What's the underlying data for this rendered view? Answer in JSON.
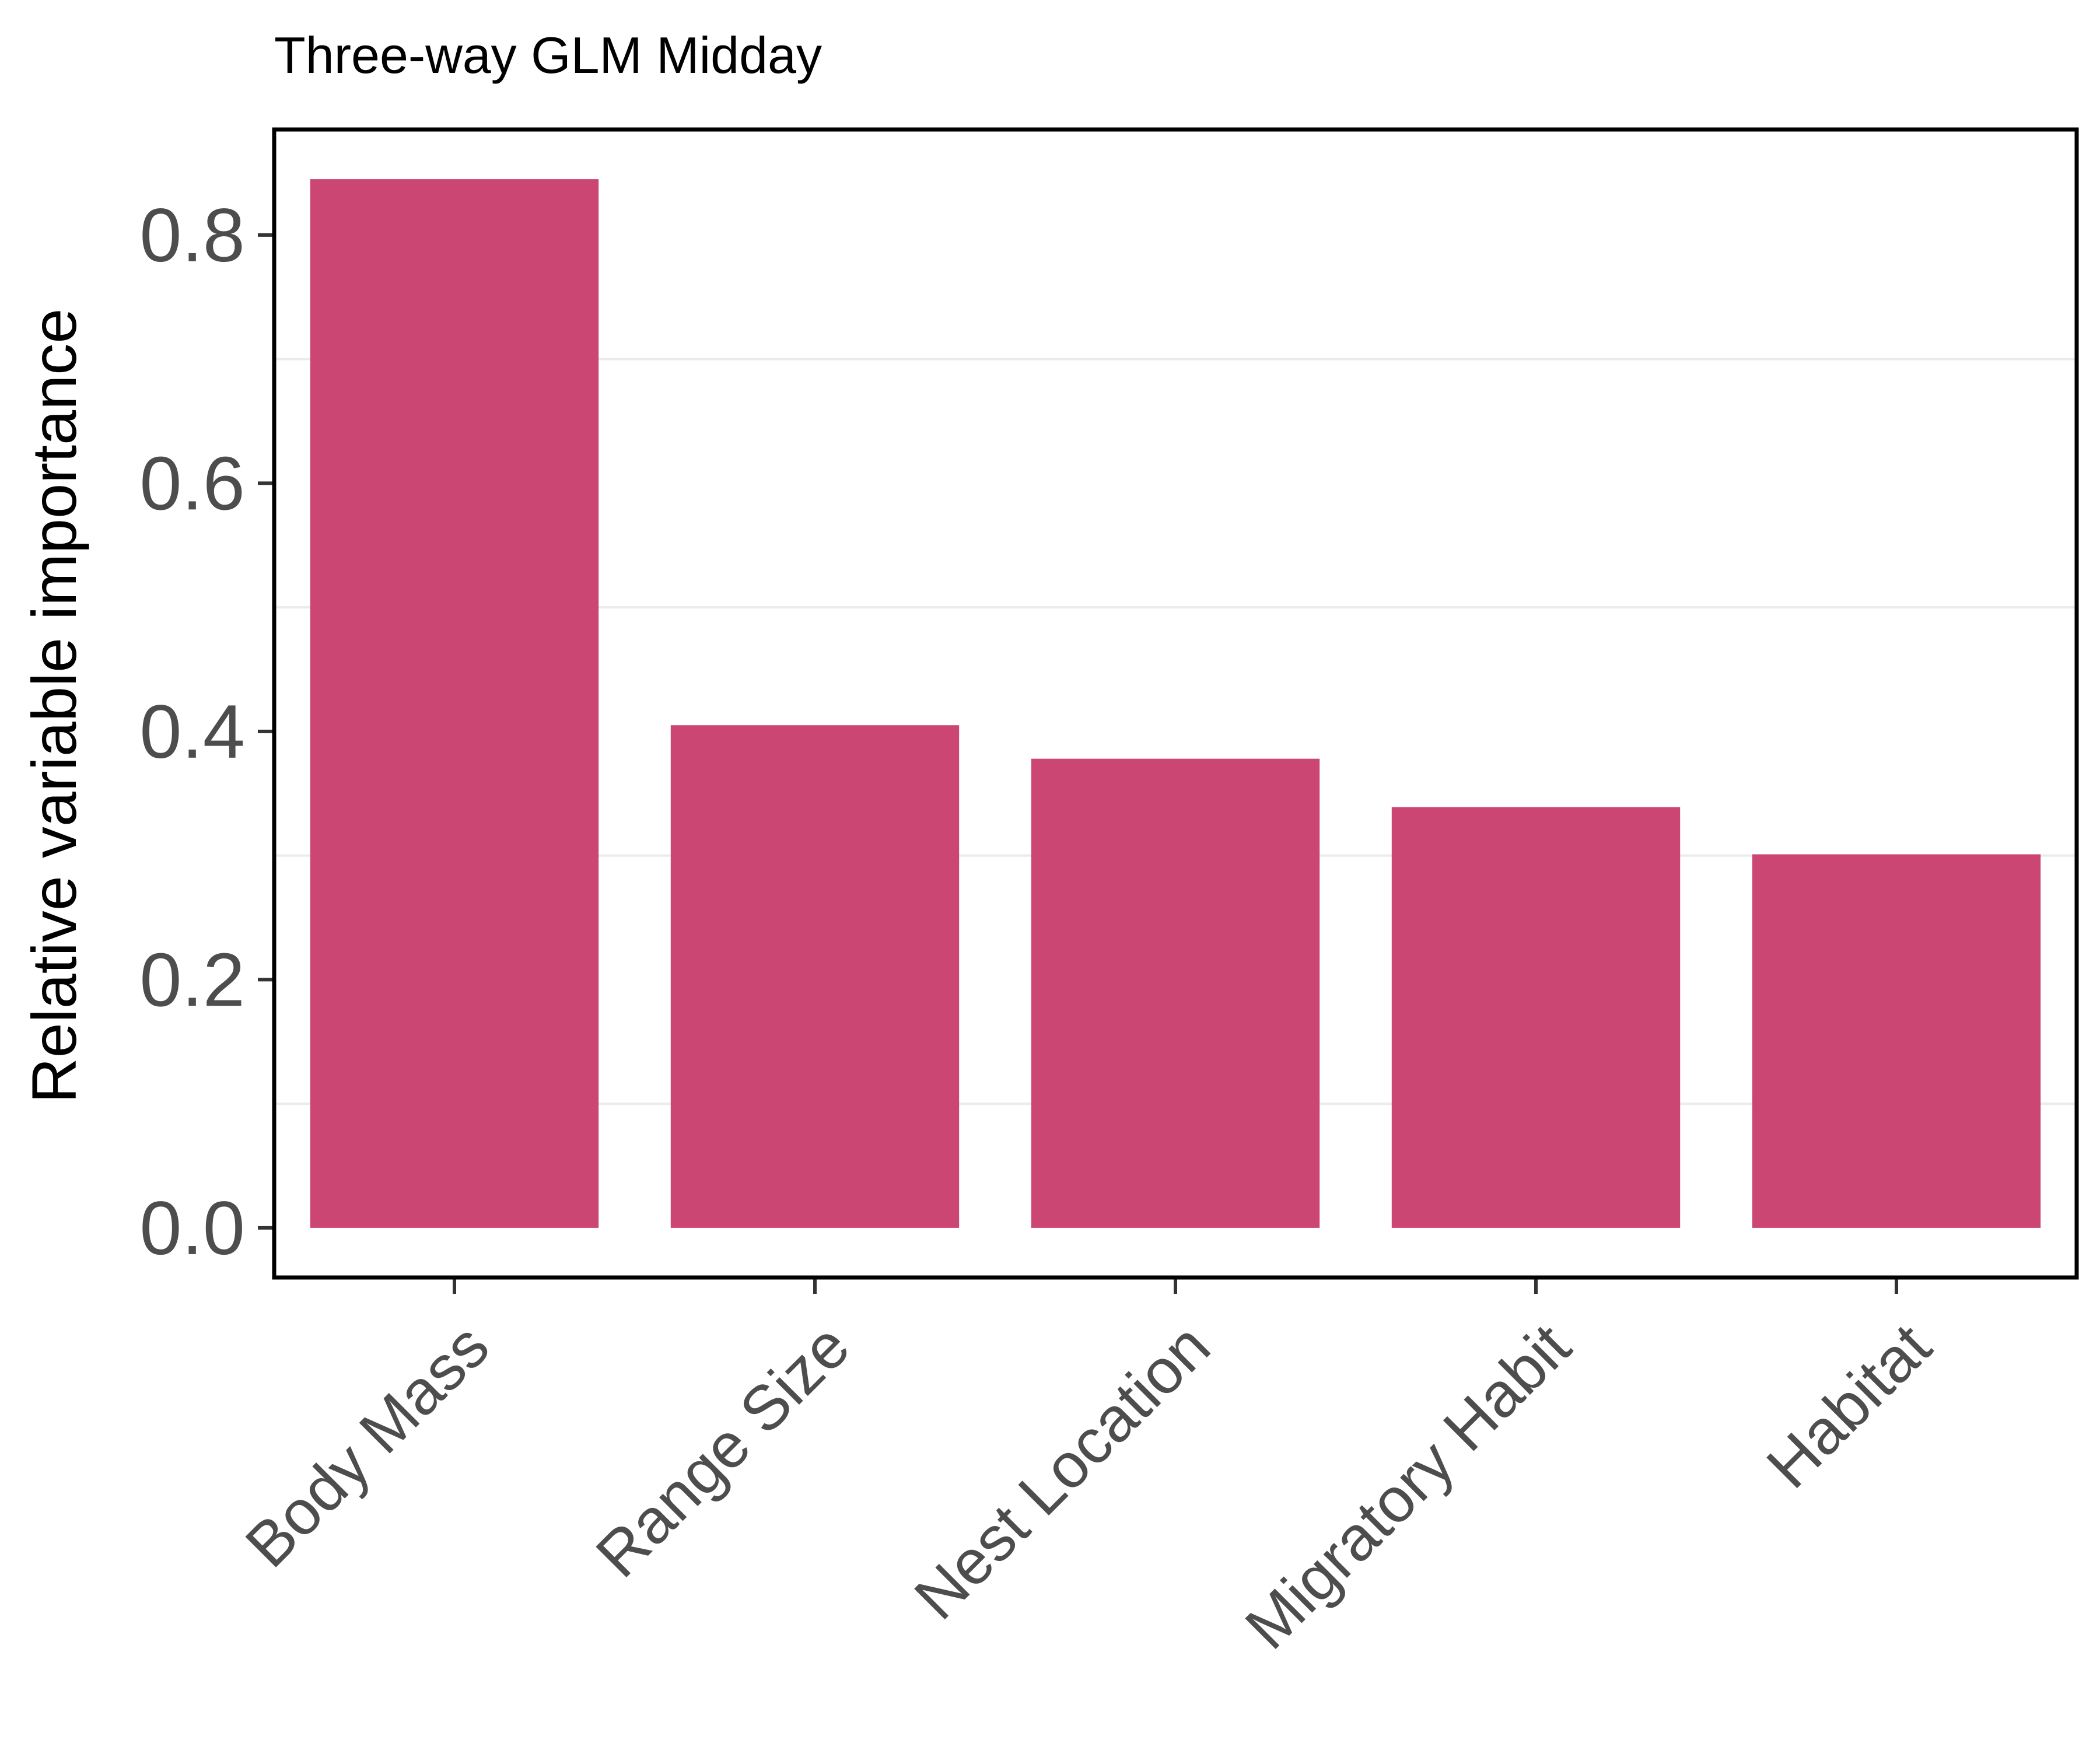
{
  "chart_data": {
    "type": "bar",
    "title": "Three-way GLM Midday",
    "xlabel": "",
    "ylabel": "Relative variable importance",
    "categories": [
      "Body Mass",
      "Range Size",
      "Nest Location",
      "Migratory Habit",
      "Habitat"
    ],
    "values": [
      0.845,
      0.405,
      0.378,
      0.339,
      0.301
    ],
    "yticks": [
      "0.0",
      "0.2",
      "0.4",
      "0.6",
      "0.8"
    ],
    "ylim": [
      -0.04,
      0.885
    ],
    "grid": "horizontal minor gridlines, light gray",
    "legend": "none",
    "colors": {
      "bar": "#CB4673",
      "axis": "#000000",
      "tick_text": "#4D4D4D",
      "grid": "#EBEBEB"
    }
  }
}
